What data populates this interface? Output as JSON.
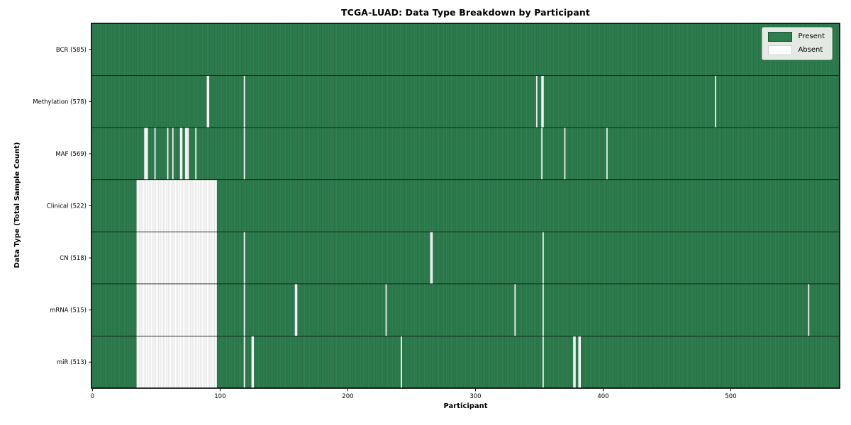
{
  "title": "TCGA-LUAD: Data Type Breakdown by Participant",
  "legend": {
    "present_label": "Present",
    "absent_label": "Absent"
  },
  "colors": {
    "present": "#2e7f50",
    "present_swatch_border": "#1d5637",
    "absent": "#ffffff",
    "bar_edge_line": "#000000",
    "bar_edge_opacity": 0.2,
    "row_divider": "#141414",
    "frame": "#000000",
    "legend_bg": "#e4e9e3"
  },
  "chart_data": {
    "type": "heatmap",
    "title": "TCGA-LUAD: Data Type Breakdown by Participant",
    "xlabel": "Participant",
    "ylabel": "Data Type (Total Sample Count)",
    "legend_entries": [
      "Present",
      "Absent"
    ],
    "legend_position": "upper right",
    "n_participants": 585,
    "x_ticks": [
      0,
      100,
      200,
      300,
      400,
      500
    ],
    "xlim": [
      0,
      585
    ],
    "rows": [
      {
        "label": "BCR (585)",
        "data_type": "BCR",
        "present_count": 585,
        "absent_count": 0,
        "absent_ranges": []
      },
      {
        "label": "Methylation (578)",
        "data_type": "Methylation",
        "present_count": 578,
        "absent_count": 7,
        "absent_ranges": [
          [
            90,
            91
          ],
          [
            119,
            119
          ],
          [
            348,
            348
          ],
          [
            352,
            353
          ],
          [
            488,
            488
          ]
        ]
      },
      {
        "label": "MAF (569)",
        "data_type": "MAF",
        "present_count": 569,
        "absent_count": 16,
        "absent_ranges": [
          [
            41,
            43
          ],
          [
            49,
            49
          ],
          [
            59,
            59
          ],
          [
            63,
            63
          ],
          [
            69,
            70
          ],
          [
            73,
            75
          ],
          [
            81,
            81
          ],
          [
            119,
            119
          ],
          [
            352,
            352
          ],
          [
            370,
            370
          ],
          [
            403,
            403
          ]
        ]
      },
      {
        "label": "Clinical (522)",
        "data_type": "Clinical",
        "present_count": 522,
        "absent_count": 63,
        "absent_ranges": [
          [
            35,
            97
          ]
        ]
      },
      {
        "label": "CN (518)",
        "data_type": "CN",
        "present_count": 518,
        "absent_count": 67,
        "absent_ranges": [
          [
            35,
            97
          ],
          [
            119,
            119
          ],
          [
            265,
            266
          ],
          [
            353,
            353
          ]
        ]
      },
      {
        "label": "mRNA (515)",
        "data_type": "mRNA",
        "present_count": 515,
        "absent_count": 70,
        "absent_ranges": [
          [
            35,
            97
          ],
          [
            119,
            119
          ],
          [
            159,
            160
          ],
          [
            230,
            230
          ],
          [
            331,
            331
          ],
          [
            353,
            353
          ],
          [
            561,
            561
          ]
        ]
      },
      {
        "label": "miR (513)",
        "data_type": "miR",
        "present_count": 513,
        "absent_count": 72,
        "absent_ranges": [
          [
            35,
            97
          ],
          [
            119,
            119
          ],
          [
            125,
            126
          ],
          [
            242,
            242
          ],
          [
            353,
            353
          ],
          [
            377,
            378
          ],
          [
            381,
            382
          ]
        ]
      }
    ]
  }
}
